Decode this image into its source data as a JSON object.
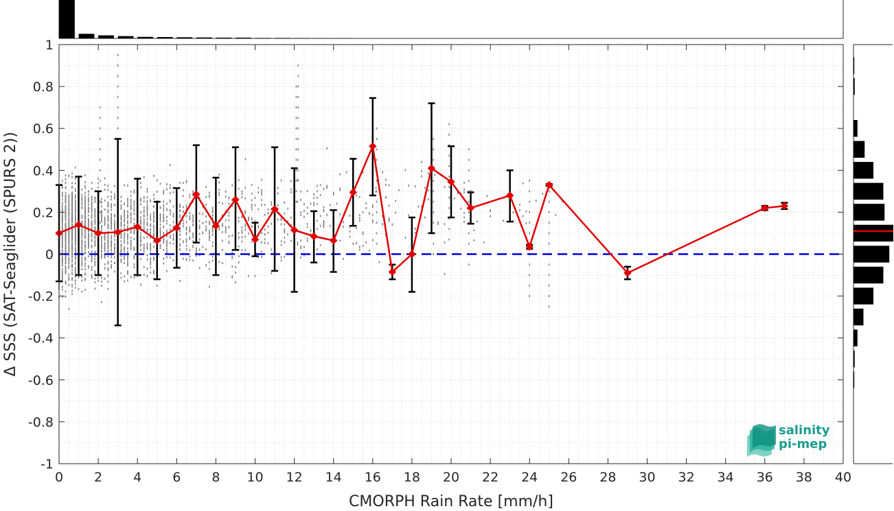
{
  "chart_data": {
    "type": "line",
    "xlabel": "CMORPH Rain Rate [mm/h]",
    "ylabel": "Δ SSS (SAT-Seaglider (SPURS 2))",
    "xlim": [
      0,
      40
    ],
    "ylim": [
      -1,
      1
    ],
    "x_ticks": [
      "0",
      "2",
      "4",
      "6",
      "8",
      "10",
      "12",
      "14",
      "16",
      "18",
      "20",
      "22",
      "24",
      "26",
      "28",
      "30",
      "32",
      "34",
      "36",
      "38",
      "40"
    ],
    "y_ticks": [
      "-1",
      "-0.8",
      "-0.6",
      "-0.4",
      "-0.2",
      "0",
      "0.2",
      "0.4",
      "0.6",
      "0.8",
      "1"
    ],
    "grid": true,
    "series": [
      {
        "color": "#e00000",
        "points": [
          {
            "x": 0,
            "y": 0.1,
            "lo": -0.13,
            "hi": 0.33
          },
          {
            "x": 1,
            "y": 0.14,
            "lo": -0.1,
            "hi": 0.37
          },
          {
            "x": 2,
            "y": 0.1,
            "lo": -0.1,
            "hi": 0.3
          },
          {
            "x": 3,
            "y": 0.105,
            "lo": -0.34,
            "hi": 0.55
          },
          {
            "x": 4,
            "y": 0.13,
            "lo": -0.1,
            "hi": 0.36
          },
          {
            "x": 5,
            "y": 0.065,
            "lo": -0.12,
            "hi": 0.25
          },
          {
            "x": 6,
            "y": 0.125,
            "lo": -0.065,
            "hi": 0.315
          },
          {
            "x": 7,
            "y": 0.285,
            "lo": 0.055,
            "hi": 0.52
          },
          {
            "x": 8,
            "y": 0.135,
            "lo": -0.1,
            "hi": 0.365
          },
          {
            "x": 9,
            "y": 0.26,
            "lo": 0.02,
            "hi": 0.51
          },
          {
            "x": 10,
            "y": 0.07,
            "lo": -0.01,
            "hi": 0.15
          },
          {
            "x": 11,
            "y": 0.215,
            "lo": -0.08,
            "hi": 0.51
          },
          {
            "x": 12,
            "y": 0.115,
            "lo": -0.18,
            "hi": 0.41
          },
          {
            "x": 13,
            "y": 0.085,
            "lo": -0.04,
            "hi": 0.205
          },
          {
            "x": 14,
            "y": 0.065,
            "lo": -0.085,
            "hi": 0.21
          },
          {
            "x": 15,
            "y": 0.295,
            "lo": 0.135,
            "hi": 0.455
          },
          {
            "x": 16,
            "y": 0.515,
            "lo": 0.28,
            "hi": 0.745
          },
          {
            "x": 17,
            "y": -0.085,
            "lo": -0.12,
            "hi": -0.05
          },
          {
            "x": 18,
            "y": 0.0,
            "lo": -0.18,
            "hi": 0.175
          },
          {
            "x": 19,
            "y": 0.41,
            "lo": 0.1,
            "hi": 0.72
          },
          {
            "x": 20,
            "y": 0.345,
            "lo": 0.175,
            "hi": 0.515
          },
          {
            "x": 21,
            "y": 0.22,
            "lo": 0.145,
            "hi": 0.295
          },
          {
            "x": 23,
            "y": 0.28,
            "lo": 0.155,
            "hi": 0.4
          },
          {
            "x": 24,
            "y": 0.035,
            "lo": 0.025,
            "hi": 0.045
          },
          {
            "x": 25,
            "y": 0.33,
            "lo": 0.325,
            "hi": 0.335
          },
          {
            "x": 29,
            "y": -0.09,
            "lo": -0.12,
            "hi": -0.06
          },
          {
            "x": 36,
            "y": 0.22,
            "lo": 0.21,
            "hi": 0.23
          },
          {
            "x": 37,
            "y": 0.23,
            "lo": 0.215,
            "hi": 0.245
          }
        ]
      }
    ],
    "reference_line": {
      "y": 0,
      "color": "#0000dd",
      "style": "dashed"
    },
    "scatter_color": "#808080",
    "top_histogram": [
      {
        "bin": 0,
        "count": 1.0
      },
      {
        "bin": 1,
        "count": 0.12
      },
      {
        "bin": 2,
        "count": 0.08
      },
      {
        "bin": 3,
        "count": 0.06
      },
      {
        "bin": 4,
        "count": 0.04
      },
      {
        "bin": 5,
        "count": 0.035
      },
      {
        "bin": 6,
        "count": 0.03
      },
      {
        "bin": 7,
        "count": 0.025
      },
      {
        "bin": 8,
        "count": 0.02
      },
      {
        "bin": 9,
        "count": 0.02
      },
      {
        "bin": 10,
        "count": 0.012
      },
      {
        "bin": 11,
        "count": 0.012
      },
      {
        "bin": 12,
        "count": 0.01
      },
      {
        "bin": 13,
        "count": 0.008
      },
      {
        "bin": 14,
        "count": 0.006
      }
    ],
    "right_histogram": [
      {
        "y": 0.9,
        "count": 0.02
      },
      {
        "y": 0.8,
        "count": 0.03
      },
      {
        "y": 0.6,
        "count": 0.1
      },
      {
        "y": 0.5,
        "count": 0.28
      },
      {
        "y": 0.4,
        "count": 0.5
      },
      {
        "y": 0.3,
        "count": 0.75
      },
      {
        "y": 0.2,
        "count": 0.78
      },
      {
        "y": 0.1,
        "count": 1.0
      },
      {
        "y": 0.0,
        "count": 0.9
      },
      {
        "y": -0.1,
        "count": 0.75
      },
      {
        "y": -0.2,
        "count": 0.5
      },
      {
        "y": -0.3,
        "count": 0.25
      },
      {
        "y": -0.4,
        "count": 0.1
      },
      {
        "y": -0.5,
        "count": 0.03
      },
      {
        "y": -0.6,
        "count": 0.02
      }
    ],
    "right_histogram_median": 0.11
  },
  "logo": {
    "line1": "salinity",
    "line2": "pi-mep",
    "color": "#1a9e8f"
  }
}
